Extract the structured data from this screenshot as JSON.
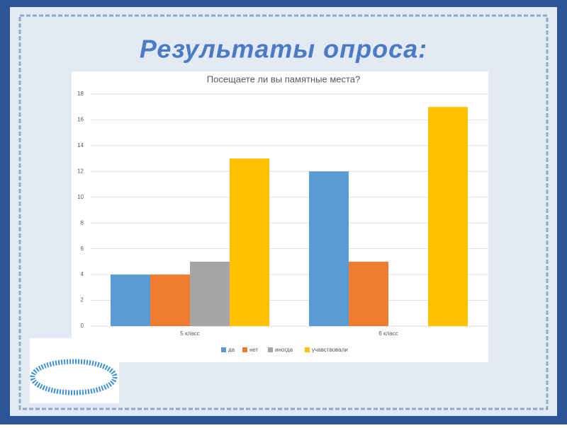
{
  "slide_title": "Результаты опроса:",
  "chart_data": {
    "type": "bar",
    "title": "Посещаете ли вы памятные места?",
    "categories": [
      "5 класс",
      "6 класс"
    ],
    "series": [
      {
        "name": "да",
        "color": "#5b9bd5",
        "values": [
          4,
          12
        ]
      },
      {
        "name": "нет",
        "color": "#ed7d31",
        "values": [
          4,
          5
        ]
      },
      {
        "name": "иногда",
        "color": "#a5a5a5",
        "values": [
          5,
          0
        ]
      },
      {
        "name": "учавствовали",
        "color": "#ffc000",
        "values": [
          13,
          17
        ]
      }
    ],
    "ylim": [
      0,
      18
    ],
    "yticks": [
      0,
      2,
      4,
      6,
      8,
      10,
      12,
      14,
      16,
      18
    ],
    "grid": true,
    "legend": "bottom"
  }
}
